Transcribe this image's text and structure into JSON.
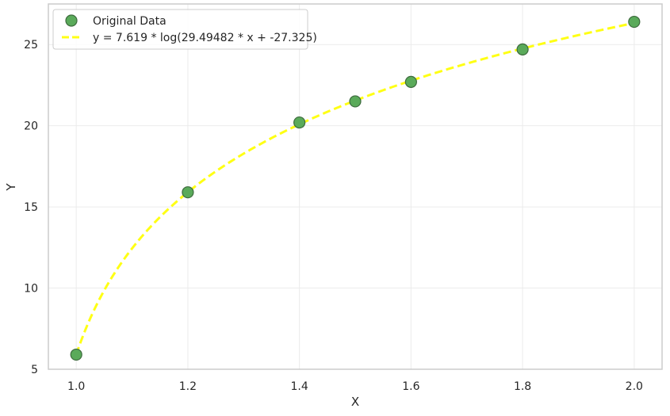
{
  "chart_data": {
    "type": "scatter",
    "title": "",
    "xlabel": "X",
    "ylabel": "Y",
    "xlim": [
      0.95,
      2.05
    ],
    "ylim": [
      5,
      27.5
    ],
    "xticks": [
      1.0,
      1.2,
      1.4,
      1.6,
      1.8,
      2.0
    ],
    "xtick_labels": [
      "1.0",
      "1.2",
      "1.4",
      "1.6",
      "1.8",
      "2.0"
    ],
    "yticks": [
      5,
      10,
      15,
      20,
      25
    ],
    "ytick_labels": [
      "5",
      "10",
      "15",
      "20",
      "25"
    ],
    "grid": true,
    "legend_position": "top-left",
    "series": [
      {
        "name": "Original Data",
        "kind": "scatter",
        "color": "#5aaa5a",
        "edge_color": "#3d6b3d",
        "x": [
          1.0,
          1.2,
          1.4,
          1.5,
          1.6,
          1.8,
          2.0
        ],
        "y": [
          5.9,
          15.9,
          20.2,
          21.5,
          22.7,
          24.7,
          26.4
        ]
      },
      {
        "name": "y = 7.619 * log(29.49482 * x + -27.325)",
        "kind": "line",
        "style": "dashed",
        "color": "#ffff14",
        "function": {
          "a": 7.619,
          "b": 29.49482,
          "c": -27.325
        },
        "x_range": [
          1.0,
          2.0
        ]
      }
    ]
  }
}
